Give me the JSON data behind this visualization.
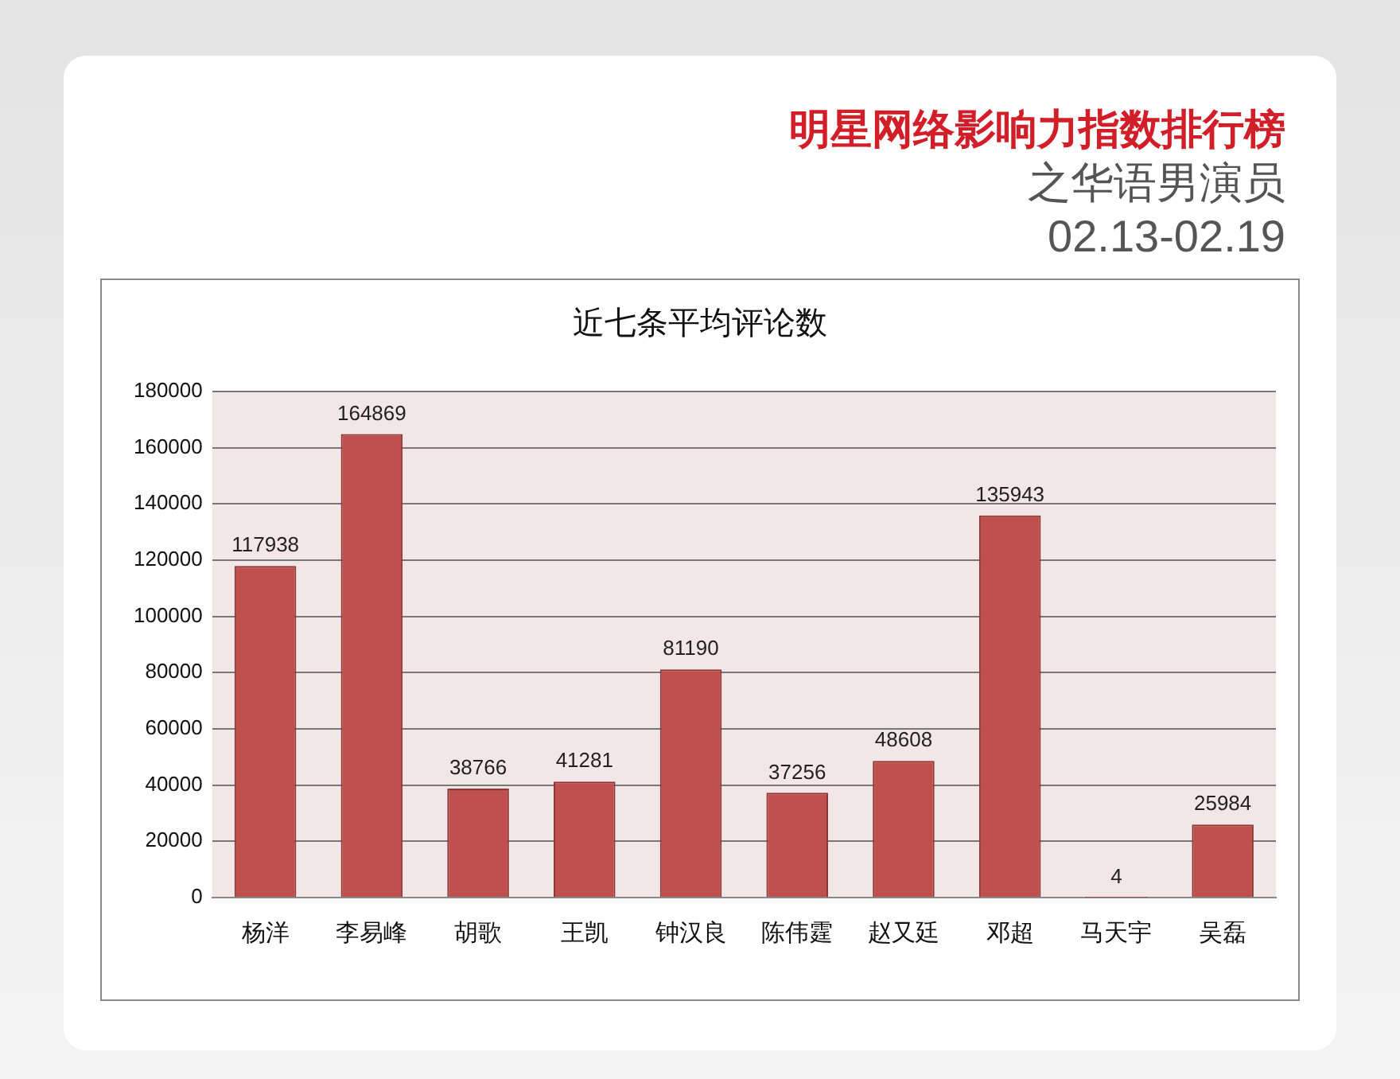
{
  "chart_data": {
    "type": "bar",
    "title": "明星网络影响力指数排行榜",
    "subtitle": "之华语男演员",
    "annotations": [
      "02.13-02.19",
      "近七条平均评论数"
    ],
    "categories": [
      "杨洋",
      "李易峰",
      "胡歌",
      "王凯",
      "钟汉良",
      "陈伟霆",
      "赵又廷",
      "邓超",
      "马天宇",
      "吴磊"
    ],
    "values": [
      117938,
      164869,
      38766,
      41281,
      81190,
      37256,
      48608,
      135943,
      4,
      25984
    ],
    "color": "#c0504d",
    "ylim": [
      0,
      180000
    ],
    "yticks": [
      0,
      20000,
      40000,
      60000,
      80000,
      100000,
      120000,
      140000,
      160000,
      180000
    ],
    "grid": "y",
    "legend": false,
    "data_labels": true
  }
}
